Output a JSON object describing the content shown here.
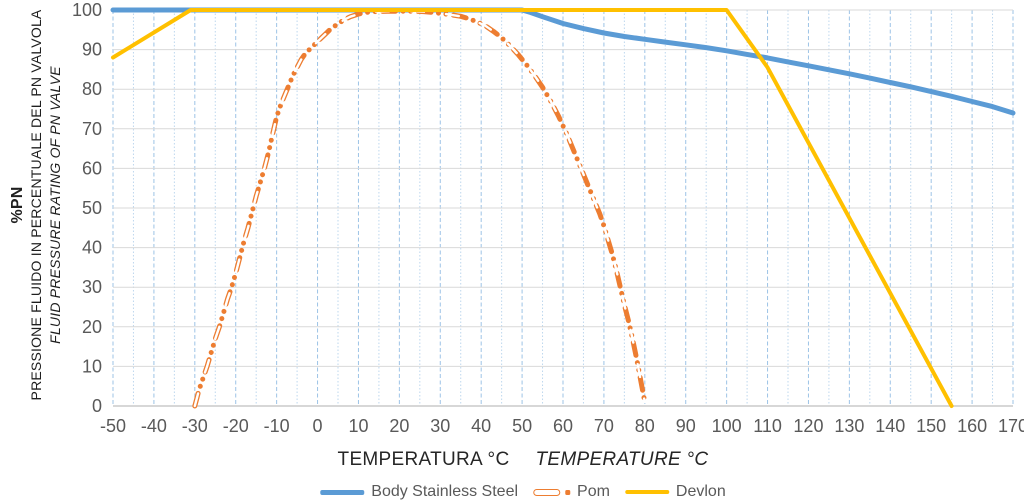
{
  "chart_data": {
    "type": "line",
    "title": "",
    "xlabel_it": "TEMPERATURA °C",
    "xlabel_en": "TEMPERATURE °C",
    "ylabel_unit": "%PN",
    "ylabel_it": "PRESSIONE FLUIDO IN PERCENTUALE DEL PN VALVOLA",
    "ylabel_en": "FLUID PRESSURE RATING OF PN VALVE",
    "xlim": [
      -50,
      170
    ],
    "ylim": [
      0,
      100
    ],
    "x_tick_step": 10,
    "x_minor_step": 5,
    "y_tick_step": 10,
    "legend_position": "bottom",
    "grid": {
      "horizontal_color": "#d9d9d9",
      "vertical_major_color": "#9dc3e6",
      "vertical_minor_color": "#bdd7ee",
      "axis_line_color": "#bfbfbf",
      "tick_label_color": "#595959"
    },
    "series": [
      {
        "name": "Body Stainless Steel",
        "color": "#5b9bd5",
        "style": "solid",
        "width": 5,
        "points": [
          [
            -50,
            100
          ],
          [
            50,
            100
          ],
          [
            52,
            99.4
          ],
          [
            55,
            98.3
          ],
          [
            60,
            96.6
          ],
          [
            65,
            95.3
          ],
          [
            70,
            94.2
          ],
          [
            75,
            93.3
          ],
          [
            80,
            92.6
          ],
          [
            85,
            91.9
          ],
          [
            90,
            91.2
          ],
          [
            95,
            90.5
          ],
          [
            100,
            89.7
          ],
          [
            105,
            88.8
          ],
          [
            110,
            87.9
          ],
          [
            115,
            86.9
          ],
          [
            120,
            85.9
          ],
          [
            125,
            84.9
          ],
          [
            130,
            83.9
          ],
          [
            135,
            82.8
          ],
          [
            140,
            81.7
          ],
          [
            145,
            80.6
          ],
          [
            150,
            79.4
          ],
          [
            155,
            78.2
          ],
          [
            160,
            76.9
          ],
          [
            165,
            75.6
          ],
          [
            170,
            74
          ]
        ]
      },
      {
        "name": "Pom",
        "color": "#ed7d31",
        "style": "long-dash-dot-dot",
        "width": 5,
        "points": [
          [
            -30,
            0
          ],
          [
            -29.5,
            2
          ],
          [
            -29,
            4
          ],
          [
            -28,
            7
          ],
          [
            -27,
            10
          ],
          [
            -26,
            13.5
          ],
          [
            -25,
            17
          ],
          [
            -24,
            20
          ],
          [
            -23,
            23.5
          ],
          [
            -22,
            27
          ],
          [
            -21,
            30
          ],
          [
            -20,
            33.5
          ],
          [
            -19,
            37.5
          ],
          [
            -18,
            41.5
          ],
          [
            -17,
            45
          ],
          [
            -16,
            49
          ],
          [
            -15,
            53
          ],
          [
            -14,
            56.5
          ],
          [
            -13,
            60
          ],
          [
            -12,
            64
          ],
          [
            -11,
            68.5
          ],
          [
            -10,
            73
          ],
          [
            -9,
            76
          ],
          [
            -8,
            78.5
          ],
          [
            -7,
            81
          ],
          [
            -6,
            83.5
          ],
          [
            -5,
            85.5
          ],
          [
            -4,
            87.5
          ],
          [
            -3,
            89
          ],
          [
            -2,
            90
          ],
          [
            -1,
            91
          ],
          [
            0,
            92
          ],
          [
            1,
            93
          ],
          [
            2,
            94
          ],
          [
            3,
            95
          ],
          [
            4,
            95.8
          ],
          [
            5,
            96.5
          ],
          [
            6,
            97.2
          ],
          [
            7,
            97.8
          ],
          [
            8,
            98.3
          ],
          [
            10,
            99
          ],
          [
            12,
            99.4
          ],
          [
            14,
            99.6
          ],
          [
            17,
            99.7
          ],
          [
            20,
            99.7
          ],
          [
            23,
            99.7
          ],
          [
            26,
            99.6
          ],
          [
            29,
            99.3
          ],
          [
            32,
            98.9
          ],
          [
            35,
            98.4
          ],
          [
            37,
            97.8
          ],
          [
            39,
            97
          ],
          [
            41,
            96
          ],
          [
            43,
            94.6
          ],
          [
            45,
            93
          ],
          [
            47,
            91
          ],
          [
            49,
            88.8
          ],
          [
            51,
            86.3
          ],
          [
            53,
            83.5
          ],
          [
            55,
            80.5
          ],
          [
            57,
            77
          ],
          [
            59,
            73
          ],
          [
            61,
            68.5
          ],
          [
            63,
            63.5
          ],
          [
            65,
            58.5
          ],
          [
            67,
            53.5
          ],
          [
            69,
            48.5
          ],
          [
            70,
            45.5
          ],
          [
            71,
            42
          ],
          [
            72,
            38.5
          ],
          [
            73,
            34.5
          ],
          [
            74,
            30
          ],
          [
            75,
            25.5
          ],
          [
            76,
            21.5
          ],
          [
            77,
            17
          ],
          [
            78,
            12
          ],
          [
            79,
            6.5
          ],
          [
            80,
            1
          ]
        ]
      },
      {
        "name": "Devlon",
        "color": "#ffc000",
        "style": "solid",
        "width": 4,
        "points": [
          [
            -50,
            88
          ],
          [
            -31,
            100
          ],
          [
            100,
            100
          ],
          [
            110,
            85.5
          ],
          [
            155,
            0
          ]
        ]
      }
    ]
  }
}
